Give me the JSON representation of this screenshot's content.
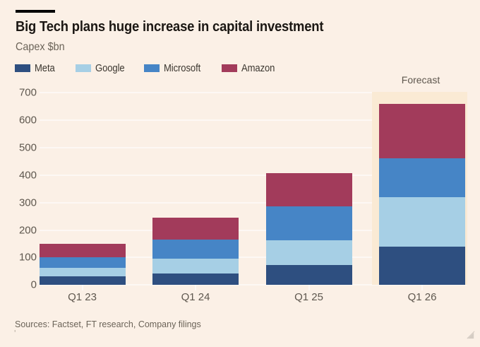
{
  "page": {
    "background": "#FBF0E6",
    "title_color": "#1B1713",
    "muted_text_color": "#6B6358",
    "axis_text_color": "#5E574E",
    "legend_text_color": "#3B362F",
    "gridline_color": "rgba(255,255,255,0.55)",
    "kicker_bar_color": "#000000",
    "forecast_band_color": "#FAEAD4"
  },
  "header": {
    "title": "Big Tech plans huge increase in capital investment",
    "subtitle": "Capex $bn"
  },
  "legend": [
    {
      "label": "Meta",
      "color": "#2E4F80"
    },
    {
      "label": "Google",
      "color": "#A6CFE5"
    },
    {
      "label": "Microsoft",
      "color": "#4685C6"
    },
    {
      "label": "Amazon",
      "color": "#A23B5B"
    }
  ],
  "chart_data": {
    "type": "bar",
    "stacked": true,
    "title": "Big Tech plans huge increase in capital investment",
    "ylabel": "Capex $bn",
    "xlabel": "",
    "categories": [
      "Q1 23",
      "Q1 24",
      "Q1 25",
      "Q1 26"
    ],
    "series": [
      {
        "name": "Meta",
        "color": "#2E4F80",
        "values": [
          32,
          43,
          72,
          140
        ]
      },
      {
        "name": "Google",
        "color": "#A6CFE5",
        "values": [
          30,
          54,
          90,
          180
        ]
      },
      {
        "name": "Microsoft",
        "color": "#4685C6",
        "values": [
          40,
          68,
          123,
          140
        ]
      },
      {
        "name": "Amazon",
        "color": "#A23B5B",
        "values": [
          48,
          80,
          123,
          200
        ]
      }
    ],
    "totals": [
      150,
      245,
      408,
      660
    ],
    "ylim": [
      0,
      700
    ],
    "ytick_step": 100,
    "yticks": [
      0,
      100,
      200,
      300,
      400,
      500,
      600,
      700
    ],
    "grid": true,
    "legend_position": "top",
    "forecast": {
      "label": "Forecast",
      "category": "Q1 26"
    }
  },
  "footer": {
    "sources": "Sources: Factset, FT research, Company filings",
    "stray_mark": "'"
  }
}
